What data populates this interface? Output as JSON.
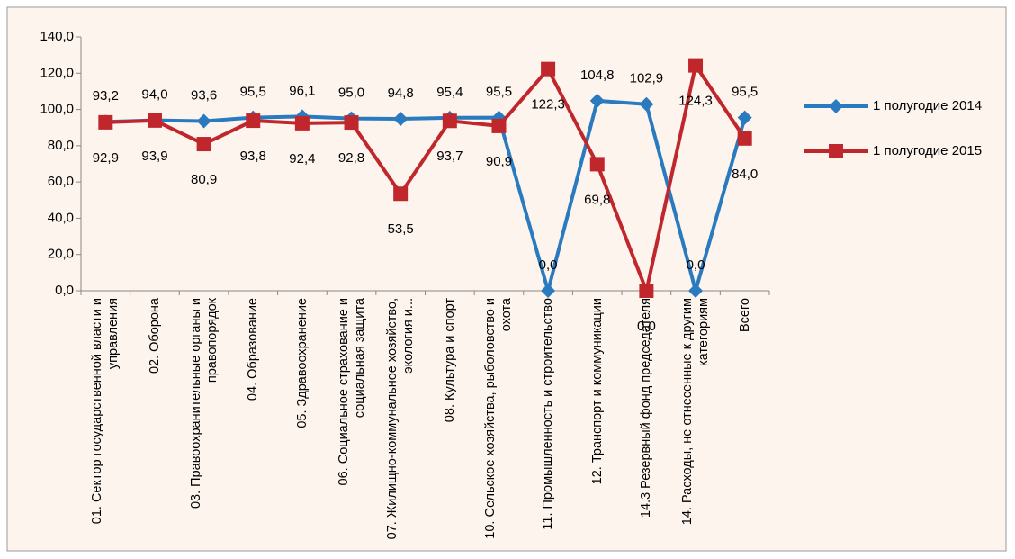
{
  "chart_data": {
    "type": "line",
    "categories": [
      "01. Сектор государственной власти и управления",
      "02. Оборона",
      "03. Правоохранительные органы и правопорядок",
      "04. Образование",
      "05. Здравоохранение",
      "06. Социальное страхование и социальная защита",
      "07. Жилищно-коммунальное хозяйство, экология и...",
      "08. Культура и спорт",
      "10. Сельское хозяйства, рыболовство и охота",
      "11. Промышленность и строительство",
      "12. Транспорт и коммуникации",
      "14.3 Резервный фонд председателя",
      "14. Расходы, не отнесенные к другим категориям",
      "Всего"
    ],
    "series": [
      {
        "name": "1 полугодие 2014",
        "color": "#2a7abf",
        "marker": "diamond",
        "values": [
          93.2,
          94.0,
          93.6,
          95.5,
          96.1,
          95.0,
          94.8,
          95.4,
          95.5,
          0.0,
          104.8,
          102.9,
          0.0,
          95.5
        ],
        "value_labels": [
          "93,2",
          "94,0",
          "93,6",
          "95,5",
          "96,1",
          "95,0",
          "94,8",
          "95,4",
          "95,5",
          "0,0",
          "104,8",
          "102,9",
          "0,0",
          "95,5"
        ]
      },
      {
        "name": "1 полугодие 2015",
        "color": "#c0272d",
        "marker": "square",
        "values": [
          92.9,
          93.9,
          80.9,
          93.8,
          92.4,
          92.8,
          53.5,
          93.7,
          90.9,
          122.3,
          69.8,
          0.0,
          124.3,
          84.0
        ],
        "value_labels": [
          "92,9",
          "93,9",
          "80,9",
          "93,8",
          "92,4",
          "92,8",
          "53,5",
          "93,7",
          "90,9",
          "122,3",
          "69,8",
          "0,0",
          "124,3",
          "84,0"
        ]
      }
    ],
    "ylim": [
      0,
      140
    ],
    "yticks": [
      {
        "value": 0,
        "label": "0,0"
      },
      {
        "value": 20,
        "label": "20,0"
      },
      {
        "value": 40,
        "label": "40,0"
      },
      {
        "value": 60,
        "label": "60,0"
      },
      {
        "value": 80,
        "label": "80,0"
      },
      {
        "value": 100,
        "label": "100,0"
      },
      {
        "value": 120,
        "label": "120,0"
      },
      {
        "value": 140,
        "label": "140,0"
      }
    ],
    "grid": false,
    "legend": "right"
  }
}
